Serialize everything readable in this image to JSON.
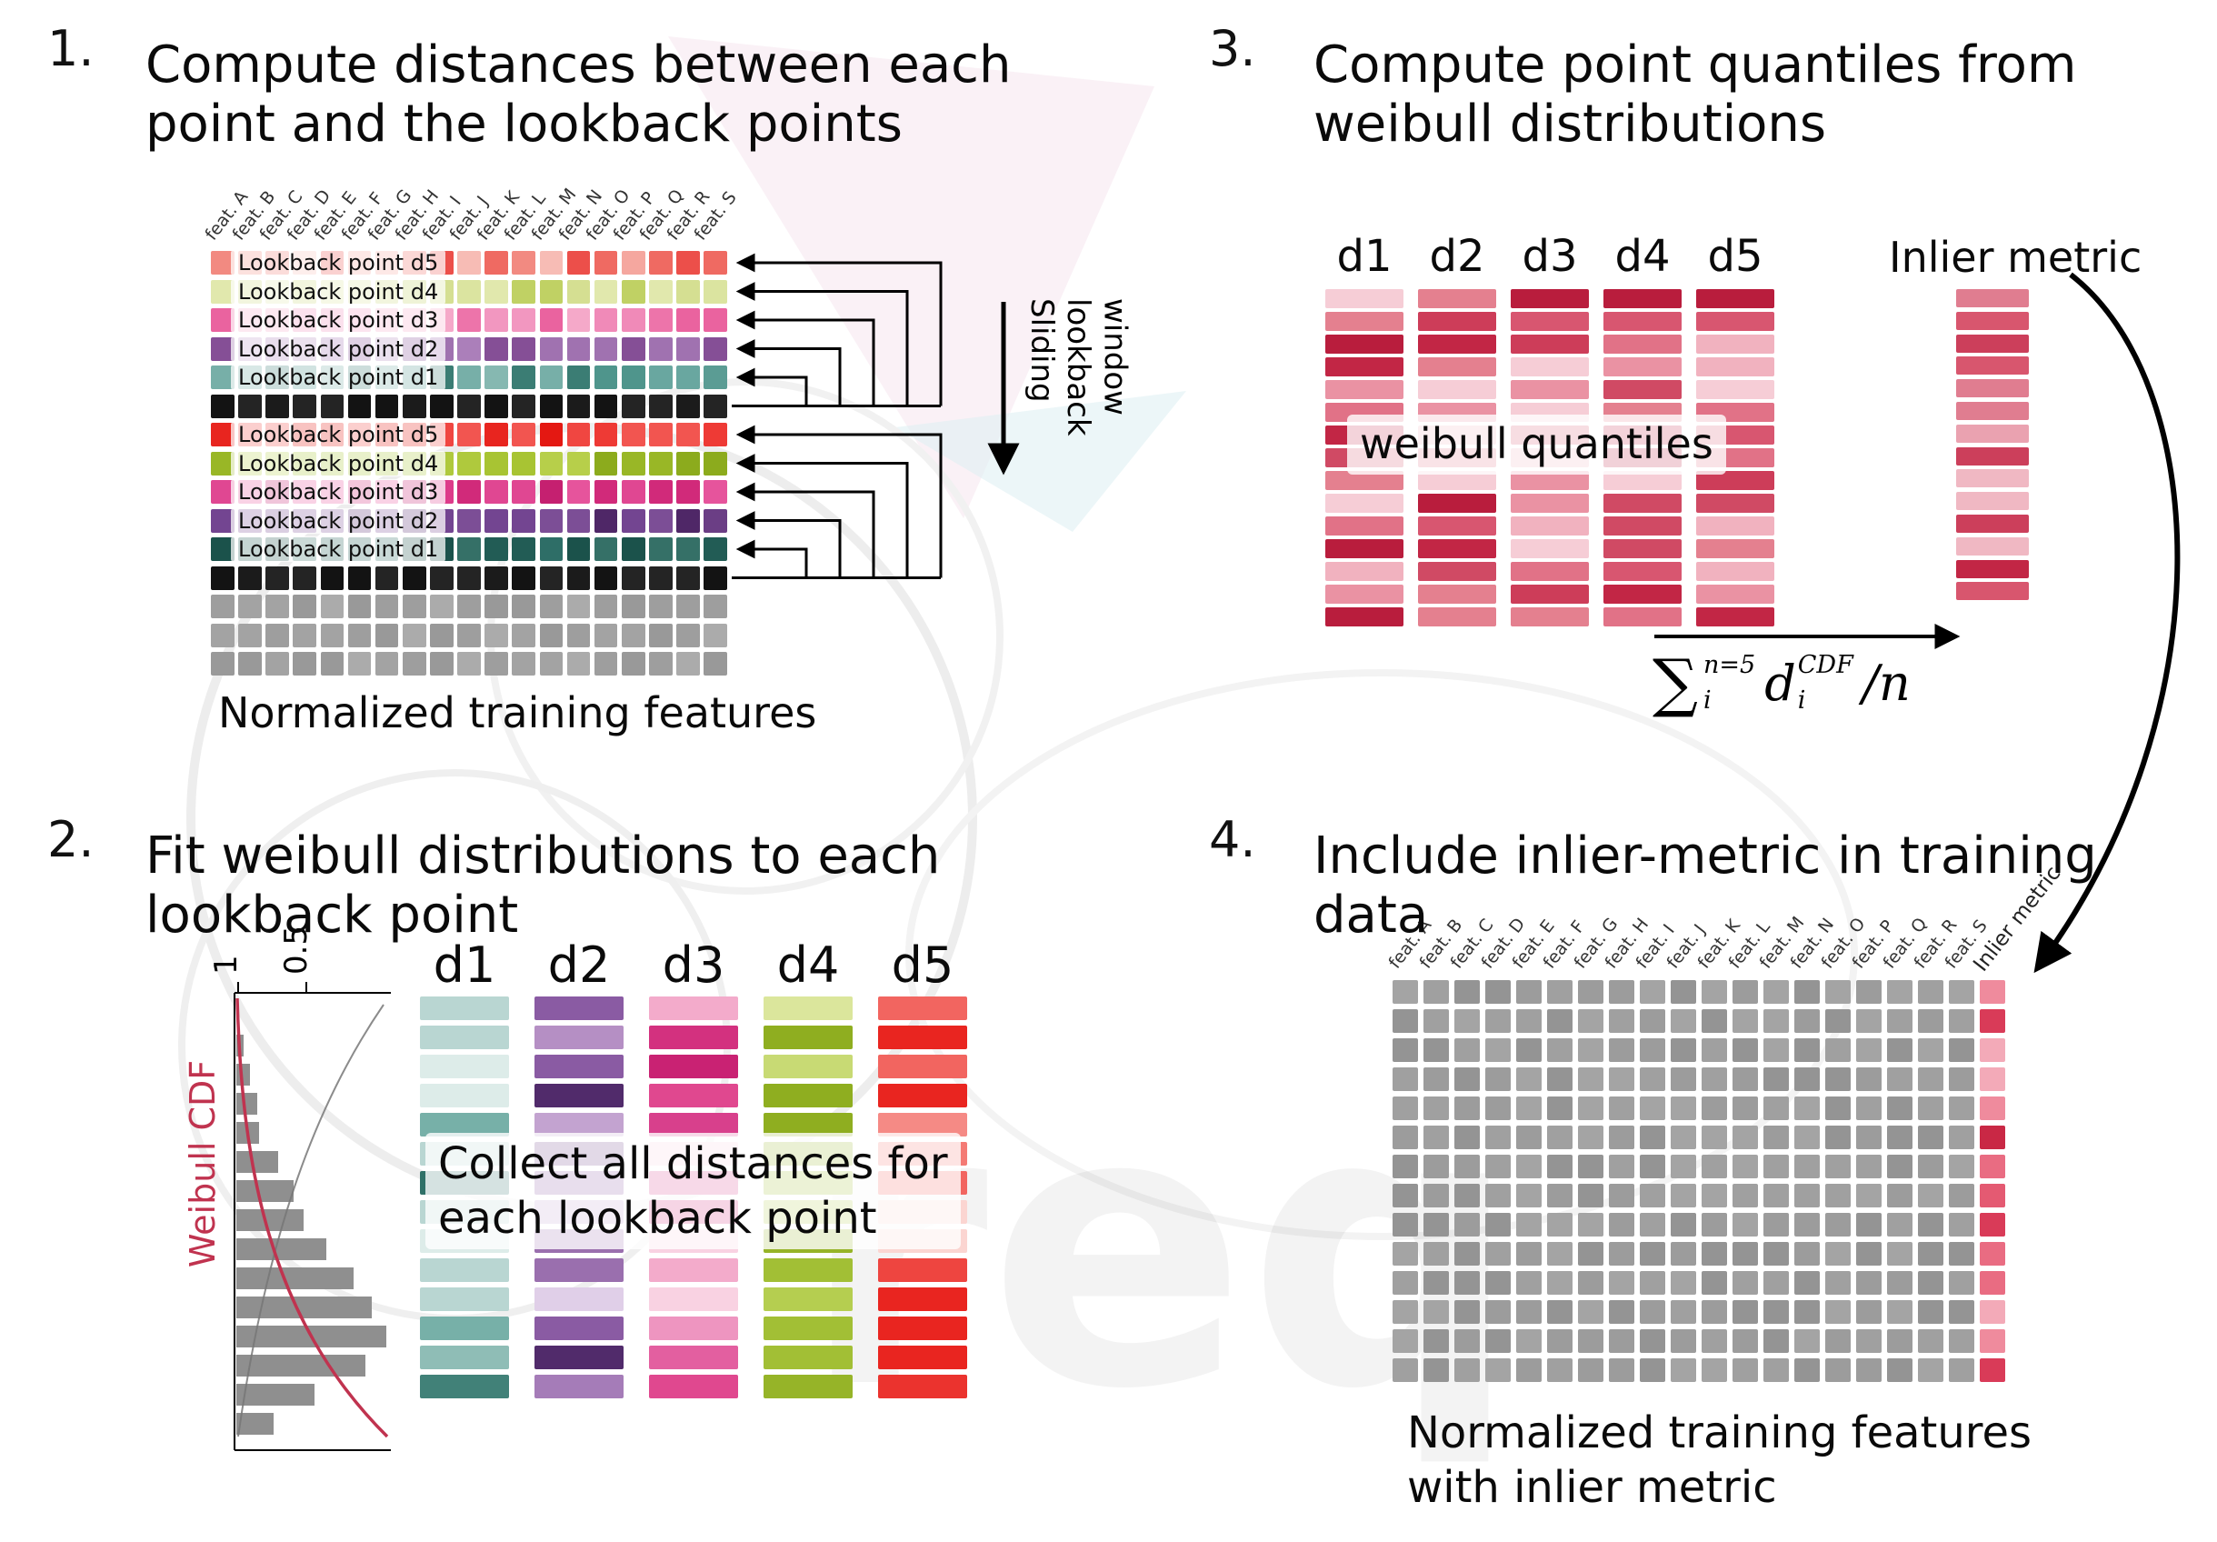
{
  "watermark": {
    "text": "req"
  },
  "palettes": {
    "d5_light": [
      "#f28a81",
      "#ef6a62",
      "#f5a79f",
      "#ec4f4a",
      "#f7bcb5",
      "#f0776f"
    ],
    "d4_light": [
      "#dbe4a0",
      "#ccd87f",
      "#e7edc2",
      "#c0d164",
      "#d5df92",
      "#e1e8ad"
    ],
    "d3_light": [
      "#f08ab8",
      "#ea639f",
      "#f5a9c9",
      "#e64a8e",
      "#f297c0",
      "#ed74aa"
    ],
    "d2_light": [
      "#ab7fba",
      "#9763a8",
      "#bf9cca",
      "#854f96",
      "#b18abf",
      "#a072b0"
    ],
    "d1_light": [
      "#69a7a0",
      "#4f958c",
      "#86b8b1",
      "#3b7d74",
      "#77afa8",
      "#5b9c94"
    ],
    "black": [
      "#1b1b1b",
      "#242424",
      "#131313"
    ],
    "gray": [
      "#a3a3a3",
      "#999999",
      "#ababab",
      "#9e9e9e"
    ],
    "d5_dark": [
      "#ee3a35",
      "#e8251f",
      "#f25550",
      "#e41812",
      "#f04641"
    ],
    "d4_dark": [
      "#a8c433",
      "#99b726",
      "#b7cf4a",
      "#8cab1d",
      "#afc93d"
    ],
    "d3_dark": [
      "#dd3b8a",
      "#d12a7a",
      "#e6549c",
      "#c52070",
      "#e04792"
    ],
    "d2_dark": [
      "#6b3e85",
      "#5b2f74",
      "#7c4e96",
      "#4f2767",
      "#734591"
    ],
    "d1_dark": [
      "#2e6e67",
      "#225c55",
      "#3c7c74",
      "#1b524b",
      "#357067"
    ],
    "d1_col": [
      "#2f7168",
      "#4f948c",
      "#6aa8a0",
      "#8fbdb6",
      "#b9d6d2",
      "#ddece9",
      "#418178",
      "#77b0a8",
      "#a0c8c2"
    ],
    "d2_col": [
      "#512b6b",
      "#6f4189",
      "#8a5ba3",
      "#a57cb8",
      "#c3a3d0",
      "#e0cfe8",
      "#7b4691",
      "#9a6fae",
      "#b58fc4"
    ],
    "d3_col": [
      "#c92273",
      "#d8408c",
      "#e35fa0",
      "#ec84b6",
      "#f3abcb",
      "#f9d2e2",
      "#e0488f",
      "#ee95c0",
      "#d3317f"
    ],
    "d4_col": [
      "#8fae20",
      "#a2bf35",
      "#b5ce50",
      "#c8da74",
      "#dbe69c",
      "#edf2c5",
      "#aac43e",
      "#c1d463",
      "#96b428"
    ],
    "d5_col": [
      "#e92520",
      "#ee4540",
      "#f26560",
      "#f58a85",
      "#f8b0aa",
      "#fbd5d1",
      "#f05550",
      "#f47a74",
      "#eb332e"
    ],
    "quantile": [
      "#c22645",
      "#cd3d59",
      "#d85670",
      "#e17287",
      "#ea92a3",
      "#f1b2bf",
      "#f6cdd6",
      "#b91d3d",
      "#e4808f",
      "#d04a64"
    ],
    "inlier": [
      "#d8566e",
      "#e07d90",
      "#cc3f5b",
      "#eaa2b0",
      "#c22645",
      "#e4697f",
      "#f0b8c3"
    ],
    "p4_gray": [
      "#9c9c9c",
      "#a4a4a4",
      "#949494",
      "#a0a0a0"
    ],
    "p4_inlier": [
      "#e45a72",
      "#ef8b9d",
      "#d93b58",
      "#f3aab8",
      "#c92845",
      "#e96c82"
    ]
  },
  "panel1": {
    "number": "1.",
    "title": "Compute distances between each\npoint and the lookback points",
    "caption": "Normalized training features",
    "sliding_label_lines": [
      "Sliding",
      "lookback",
      "window"
    ],
    "feature_labels": [
      "feat. A",
      "feat. B",
      "feat. C",
      "feat. D",
      "feat. E",
      "feat. F",
      "feat. G",
      "feat. H",
      "feat. I",
      "feat. J",
      "feat. K",
      "feat. L",
      "feat. M",
      "feat. N",
      "feat. O",
      "feat. P",
      "feat. Q",
      "feat. R",
      "feat. S"
    ],
    "rows": [
      {
        "label": "Lookback point d5",
        "palette": "d5_light"
      },
      {
        "label": "Lookback point d4",
        "palette": "d4_light"
      },
      {
        "label": "Lookback point d3",
        "palette": "d3_light"
      },
      {
        "label": "Lookback point d2",
        "palette": "d2_light"
      },
      {
        "label": "Lookback point d1",
        "palette": "d1_light"
      },
      {
        "palette": "black"
      },
      {
        "label": "Lookback point d5",
        "palette": "d5_dark"
      },
      {
        "label": "Lookback point d4",
        "palette": "d4_dark"
      },
      {
        "label": "Lookback point d3",
        "palette": "d3_dark"
      },
      {
        "label": "Lookback point d2",
        "palette": "d2_dark"
      },
      {
        "label": "Lookback point d1",
        "palette": "d1_dark"
      },
      {
        "palette": "black"
      },
      {
        "palette": "gray"
      },
      {
        "palette": "gray"
      },
      {
        "palette": "gray"
      }
    ]
  },
  "panel2": {
    "number": "2.",
    "title": "Fit weibull distributions to each\nlookback point",
    "overlay": "Collect all distances for\neach lookback point",
    "plot": {
      "ylabel": "Weibull CDF",
      "tick_labels": [
        "1",
        "0.5"
      ],
      "hist": [
        0.05,
        0.09,
        0.14,
        0.15,
        0.28,
        0.38,
        0.45,
        0.6,
        0.78,
        0.9,
        1.0,
        0.86,
        0.52,
        0.25
      ]
    },
    "columns": [
      {
        "header": "d1",
        "palette": "d1_col"
      },
      {
        "header": "d2",
        "palette": "d2_col"
      },
      {
        "header": "d3",
        "palette": "d3_col"
      },
      {
        "header": "d4",
        "palette": "d4_col"
      },
      {
        "header": "d5",
        "palette": "d5_col"
      }
    ],
    "bars_per_column": 14
  },
  "panel3": {
    "number": "3.",
    "title": "Compute point quantiles from\nweibull distributions",
    "overlay": "weibull quantiles",
    "inlier_label": "Inlier metric",
    "columns": [
      {
        "header": "d1",
        "palette": "quantile"
      },
      {
        "header": "d2",
        "palette": "quantile"
      },
      {
        "header": "d3",
        "palette": "quantile"
      },
      {
        "header": "d4",
        "palette": "quantile"
      },
      {
        "header": "d5",
        "palette": "quantile"
      }
    ],
    "bars_per_column": 15,
    "inlier": {
      "palette": "inlier",
      "bars": 14
    },
    "formula": {
      "sum_symbol": "∑",
      "sum_sup": "n=5",
      "sum_sub": "i",
      "term": "d",
      "term_sup": "CDF",
      "term_sub": "i",
      "tail": "/n"
    }
  },
  "panel4": {
    "number": "4.",
    "title": "Include inlier-metric in training\ndata",
    "caption": "Normalized training features\nwith inlier metric",
    "feature_labels": [
      "feat. A",
      "feat. B",
      "feat. C",
      "feat. D",
      "feat. E",
      "feat. F",
      "feat. G",
      "feat. H",
      "feat. I",
      "feat. J",
      "feat. K",
      "feat. L",
      "feat. M",
      "feat. N",
      "feat. O",
      "feat. P",
      "feat. Q",
      "feat. R",
      "feat. S"
    ],
    "inlier_col_label": "Inlier metric",
    "grid": {
      "rows": 14,
      "cols": 20
    }
  }
}
